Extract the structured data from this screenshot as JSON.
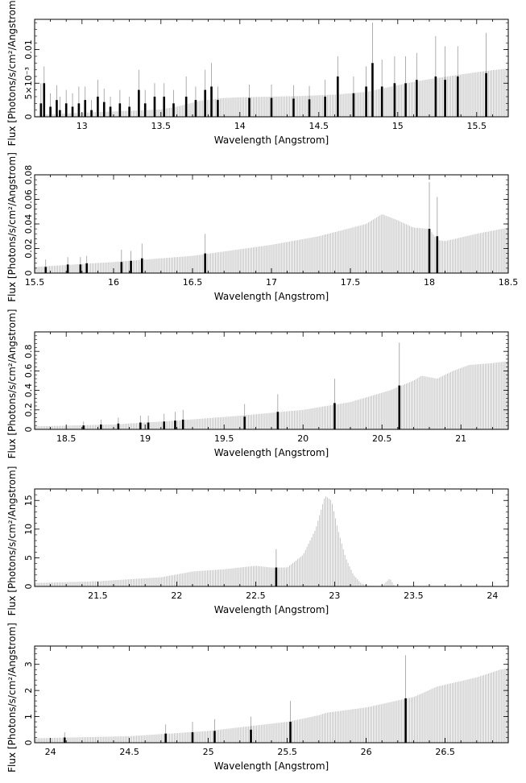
{
  "figure": {
    "xlabel": "Wavelength [Angstrom]",
    "ylabel": "Flux [Photons/s/cm²/Angstrom]",
    "colors": {
      "model": "#b4b4b4",
      "data": "#000000",
      "error": "#9a9a9a"
    }
  },
  "chart_data": [
    {
      "type": "bar",
      "xlim": [
        12.7,
        15.7
      ],
      "ylim": [
        0,
        0.0145
      ],
      "xticks": [
        13,
        13.5,
        14,
        14.5,
        15,
        15.5
      ],
      "xtick_labels": [
        "13",
        "13.5",
        "14",
        "14.5",
        "15",
        "15.5"
      ],
      "yticks": [
        0,
        0.005,
        0.01
      ],
      "ytick_labels": [
        "0",
        "5×10⁻³",
        "0.01"
      ],
      "model": [
        [
          12.7,
          0.0001
        ],
        [
          12.75,
          0.0003
        ],
        [
          12.8,
          0.0004
        ],
        [
          12.9,
          0.0005
        ],
        [
          13.0,
          0.0006
        ],
        [
          13.1,
          0.0007
        ],
        [
          13.3,
          0.0009
        ],
        [
          13.5,
          0.0011
        ],
        [
          13.6,
          0.0015
        ],
        [
          13.75,
          0.0024
        ],
        [
          13.9,
          0.0028
        ],
        [
          14.0,
          0.0029
        ],
        [
          14.2,
          0.003
        ],
        [
          14.4,
          0.0031
        ],
        [
          14.6,
          0.0033
        ],
        [
          14.8,
          0.0037
        ],
        [
          15.0,
          0.0047
        ],
        [
          15.1,
          0.0052
        ],
        [
          15.2,
          0.0056
        ],
        [
          15.4,
          0.0063
        ],
        [
          15.55,
          0.0068
        ],
        [
          15.7,
          0.0072
        ]
      ],
      "data": [
        {
          "x": 12.74,
          "y": 0.002,
          "err": 0.003
        },
        {
          "x": 12.76,
          "y": 0.005,
          "err": 0.0025
        },
        {
          "x": 12.8,
          "y": 0.0015,
          "err": 0.002
        },
        {
          "x": 12.84,
          "y": 0.0025,
          "err": 0.0022
        },
        {
          "x": 12.86,
          "y": 0.001,
          "err": 0.002
        },
        {
          "x": 12.9,
          "y": 0.002,
          "err": 0.002
        },
        {
          "x": 12.94,
          "y": 0.0015,
          "err": 0.002
        },
        {
          "x": 12.98,
          "y": 0.002,
          "err": 0.0025
        },
        {
          "x": 13.02,
          "y": 0.0025,
          "err": 0.002
        },
        {
          "x": 13.06,
          "y": 0.001,
          "err": 0.0015
        },
        {
          "x": 13.1,
          "y": 0.003,
          "err": 0.0025
        },
        {
          "x": 13.14,
          "y": 0.0022,
          "err": 0.002
        },
        {
          "x": 13.18,
          "y": 0.0015,
          "err": 0.0015
        },
        {
          "x": 13.24,
          "y": 0.002,
          "err": 0.002
        },
        {
          "x": 13.3,
          "y": 0.0015,
          "err": 0.0015
        },
        {
          "x": 13.36,
          "y": 0.004,
          "err": 0.003
        },
        {
          "x": 13.4,
          "y": 0.002,
          "err": 0.002
        },
        {
          "x": 13.46,
          "y": 0.003,
          "err": 0.002
        },
        {
          "x": 13.52,
          "y": 0.003,
          "err": 0.002
        },
        {
          "x": 13.58,
          "y": 0.002,
          "err": 0.002
        },
        {
          "x": 13.66,
          "y": 0.003,
          "err": 0.003
        },
        {
          "x": 13.72,
          "y": 0.0025,
          "err": 0.002
        },
        {
          "x": 13.78,
          "y": 0.004,
          "err": 0.003
        },
        {
          "x": 13.82,
          "y": 0.0045,
          "err": 0.0035
        },
        {
          "x": 13.86,
          "y": 0.0025,
          "err": 0.002
        },
        {
          "x": 14.06,
          "y": 0.0028,
          "err": 0.002
        },
        {
          "x": 14.2,
          "y": 0.0028,
          "err": 0.002
        },
        {
          "x": 14.34,
          "y": 0.0027,
          "err": 0.002
        },
        {
          "x": 14.44,
          "y": 0.0026,
          "err": 0.002
        },
        {
          "x": 14.54,
          "y": 0.003,
          "err": 0.0025
        },
        {
          "x": 14.62,
          "y": 0.006,
          "err": 0.003
        },
        {
          "x": 14.72,
          "y": 0.0035,
          "err": 0.0025
        },
        {
          "x": 14.8,
          "y": 0.0045,
          "err": 0.003
        },
        {
          "x": 14.84,
          "y": 0.008,
          "err": 0.006
        },
        {
          "x": 14.9,
          "y": 0.0045,
          "err": 0.004
        },
        {
          "x": 14.98,
          "y": 0.005,
          "err": 0.004
        },
        {
          "x": 15.05,
          "y": 0.005,
          "err": 0.004
        },
        {
          "x": 15.12,
          "y": 0.0055,
          "err": 0.004
        },
        {
          "x": 15.24,
          "y": 0.006,
          "err": 0.006
        },
        {
          "x": 15.3,
          "y": 0.0055,
          "err": 0.005
        },
        {
          "x": 15.38,
          "y": 0.006,
          "err": 0.0045
        },
        {
          "x": 15.56,
          "y": 0.0065,
          "err": 0.006
        }
      ]
    },
    {
      "type": "bar",
      "xlim": [
        15.5,
        18.5
      ],
      "ylim": [
        0,
        0.08
      ],
      "xticks": [
        15.5,
        16,
        16.5,
        17,
        17.5,
        18,
        18.5
      ],
      "xtick_labels": [
        "15.5",
        "16",
        "16.5",
        "17",
        "17.5",
        "18",
        "18.5"
      ],
      "yticks": [
        0,
        0.02,
        0.04,
        0.06,
        0.08
      ],
      "ytick_labels": [
        "0",
        "0.02",
        "0.04",
        "0.06",
        "0.08"
      ],
      "model": [
        [
          15.5,
          0.005
        ],
        [
          16.0,
          0.009
        ],
        [
          16.5,
          0.014
        ],
        [
          17.0,
          0.023
        ],
        [
          17.3,
          0.03
        ],
        [
          17.6,
          0.04
        ],
        [
          17.7,
          0.048
        ],
        [
          17.8,
          0.043
        ],
        [
          17.9,
          0.037
        ],
        [
          18.0,
          0.036
        ],
        [
          18.05,
          0.027
        ],
        [
          18.1,
          0.026
        ],
        [
          18.3,
          0.032
        ],
        [
          18.5,
          0.037
        ]
      ],
      "data": [
        {
          "x": 15.57,
          "y": 0.005,
          "err": 0.006
        },
        {
          "x": 15.71,
          "y": 0.007,
          "err": 0.006
        },
        {
          "x": 15.79,
          "y": 0.007,
          "err": 0.006
        },
        {
          "x": 15.83,
          "y": 0.008,
          "err": 0.006
        },
        {
          "x": 16.05,
          "y": 0.009,
          "err": 0.01
        },
        {
          "x": 16.11,
          "y": 0.01,
          "err": 0.008
        },
        {
          "x": 16.18,
          "y": 0.012,
          "err": 0.012
        },
        {
          "x": 16.58,
          "y": 0.016,
          "err": 0.016
        },
        {
          "x": 18.0,
          "y": 0.036,
          "err": 0.038
        },
        {
          "x": 18.05,
          "y": 0.03,
          "err": 0.032
        }
      ]
    },
    {
      "type": "bar",
      "xlim": [
        18.3,
        21.3
      ],
      "ylim": [
        0,
        1.0
      ],
      "xticks": [
        18.5,
        19,
        19.5,
        20,
        20.5,
        21
      ],
      "xtick_labels": [
        "18.5",
        "19",
        "19.5",
        "20",
        "20.5",
        "21"
      ],
      "yticks": [
        0,
        0.2,
        0.4,
        0.6,
        0.8
      ],
      "ytick_labels": [
        "0",
        "0.2",
        "0.4",
        "0.6",
        "0.8"
      ],
      "model": [
        [
          18.3,
          0.03
        ],
        [
          18.8,
          0.05
        ],
        [
          19.2,
          0.09
        ],
        [
          19.6,
          0.14
        ],
        [
          20.0,
          0.2
        ],
        [
          20.3,
          0.28
        ],
        [
          20.55,
          0.4
        ],
        [
          20.7,
          0.5
        ],
        [
          20.75,
          0.55
        ],
        [
          20.85,
          0.52
        ],
        [
          20.95,
          0.6
        ],
        [
          21.05,
          0.66
        ],
        [
          21.2,
          0.68
        ],
        [
          21.3,
          0.7
        ]
      ],
      "data": [
        {
          "x": 18.61,
          "y": 0.04,
          "err": 0.04
        },
        {
          "x": 18.72,
          "y": 0.05,
          "err": 0.05
        },
        {
          "x": 18.83,
          "y": 0.06,
          "err": 0.06
        },
        {
          "x": 18.97,
          "y": 0.07,
          "err": 0.07
        },
        {
          "x": 19.02,
          "y": 0.07,
          "err": 0.07
        },
        {
          "x": 19.12,
          "y": 0.08,
          "err": 0.08
        },
        {
          "x": 19.19,
          "y": 0.09,
          "err": 0.09
        },
        {
          "x": 19.24,
          "y": 0.1,
          "err": 0.1
        },
        {
          "x": 19.63,
          "y": 0.13,
          "err": 0.13
        },
        {
          "x": 19.84,
          "y": 0.18,
          "err": 0.18
        },
        {
          "x": 20.2,
          "y": 0.27,
          "err": 0.25
        },
        {
          "x": 20.61,
          "y": 0.45,
          "err": 0.44
        }
      ]
    },
    {
      "type": "bar",
      "xlim": [
        21.1,
        24.1
      ],
      "ylim": [
        0,
        17
      ],
      "xticks": [
        21.5,
        22,
        22.5,
        23,
        23.5,
        24
      ],
      "xtick_labels": [
        "21.5",
        "22",
        "22.5",
        "23",
        "23.5",
        "24"
      ],
      "yticks": [
        0,
        5,
        10,
        15
      ],
      "ytick_labels": [
        "0",
        "5",
        "10",
        "15"
      ],
      "model": [
        [
          21.1,
          0.6
        ],
        [
          21.5,
          0.9
        ],
        [
          21.9,
          1.6
        ],
        [
          22.1,
          2.6
        ],
        [
          22.3,
          3.0
        ],
        [
          22.5,
          3.6
        ],
        [
          22.6,
          3.3
        ],
        [
          22.7,
          3.3
        ],
        [
          22.8,
          5.5
        ],
        [
          22.88,
          10.0
        ],
        [
          22.94,
          15.8
        ],
        [
          22.98,
          15.0
        ],
        [
          23.02,
          10.0
        ],
        [
          23.07,
          5.0
        ],
        [
          23.12,
          2.0
        ],
        [
          23.17,
          0.5
        ],
        [
          23.22,
          0.1
        ],
        [
          23.3,
          0.1
        ],
        [
          23.35,
          1.4
        ],
        [
          23.38,
          0.1
        ],
        [
          23.5,
          0.0
        ],
        [
          24.1,
          0.0
        ]
      ],
      "data": [
        {
          "x": 22.63,
          "y": 3.3,
          "err": 3.2
        }
      ]
    },
    {
      "type": "bar",
      "xlim": [
        23.9,
        26.9
      ],
      "ylim": [
        0,
        3.7
      ],
      "xticks": [
        24,
        24.5,
        25,
        25.5,
        26,
        26.5
      ],
      "xtick_labels": [
        "24",
        "24.5",
        "25",
        "25.5",
        "26",
        "26.5"
      ],
      "yticks": [
        0,
        1,
        2,
        3
      ],
      "ytick_labels": [
        "0",
        "1",
        "2",
        "3"
      ],
      "model": [
        [
          23.9,
          0.17
        ],
        [
          24.5,
          0.25
        ],
        [
          25.0,
          0.45
        ],
        [
          25.5,
          0.8
        ],
        [
          25.7,
          1.05
        ],
        [
          25.75,
          1.15
        ],
        [
          26.0,
          1.35
        ],
        [
          26.3,
          1.75
        ],
        [
          26.45,
          2.15
        ],
        [
          26.7,
          2.5
        ],
        [
          26.85,
          2.8
        ],
        [
          26.9,
          2.85
        ]
      ],
      "data": [
        {
          "x": 24.09,
          "y": 0.2,
          "err": 0.2
        },
        {
          "x": 24.73,
          "y": 0.35,
          "err": 0.35
        },
        {
          "x": 24.9,
          "y": 0.4,
          "err": 0.4
        },
        {
          "x": 25.04,
          "y": 0.45,
          "err": 0.45
        },
        {
          "x": 25.27,
          "y": 0.5,
          "err": 0.5
        },
        {
          "x": 25.52,
          "y": 0.8,
          "err": 0.8
        },
        {
          "x": 26.25,
          "y": 1.7,
          "err": 1.65
        }
      ]
    }
  ]
}
